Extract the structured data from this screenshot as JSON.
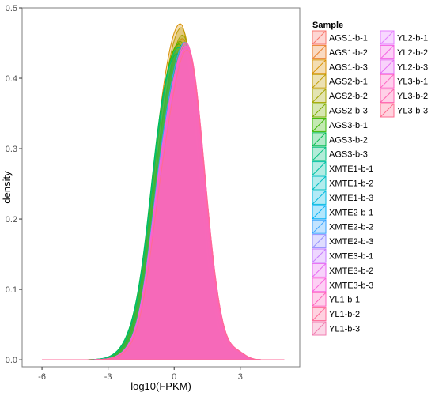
{
  "chart_data": {
    "type": "area",
    "title": "",
    "xlabel": "log10(FPKM)",
    "ylabel": "density",
    "xlim": [
      -6.9,
      5.7
    ],
    "ylim": [
      -0.01,
      0.5
    ],
    "x_ticks": [
      -6,
      -3,
      0,
      3
    ],
    "x_tick_labels": [
      "-6",
      "-3",
      "0",
      "3"
    ],
    "y_ticks": [
      0.0,
      0.1,
      0.2,
      0.3,
      0.4,
      0.5
    ],
    "y_tick_labels": [
      "0.0",
      "0.1",
      "0.2",
      "0.3",
      "0.4",
      "0.5"
    ],
    "x_range": [
      -6,
      5
    ],
    "grid": false,
    "legend_position": "right",
    "legend_title": "Sample",
    "fill_opacity": 0.3,
    "series": [
      {
        "name": "AGS1-b-1",
        "color": "#F8766D",
        "peak_x": 0.35,
        "peak_density": 0.44,
        "shoulder_density": 0.2
      },
      {
        "name": "AGS1-b-2",
        "color": "#EA8331",
        "peak_x": 0.4,
        "peak_density": 0.455,
        "shoulder_density": 0.2
      },
      {
        "name": "AGS1-b-3",
        "color": "#D89000",
        "peak_x": 0.3,
        "peak_density": 0.475,
        "shoulder_density": 0.19
      },
      {
        "name": "AGS2-b-1",
        "color": "#C09B00",
        "peak_x": 0.35,
        "peak_density": 0.47,
        "shoulder_density": 0.2
      },
      {
        "name": "AGS2-b-2",
        "color": "#A3A500",
        "peak_x": 0.4,
        "peak_density": 0.46,
        "shoulder_density": 0.2
      },
      {
        "name": "AGS2-b-3",
        "color": "#7CAE00",
        "peak_x": 0.3,
        "peak_density": 0.45,
        "shoulder_density": 0.21
      },
      {
        "name": "AGS3-b-1",
        "color": "#39B600",
        "peak_x": 0.25,
        "peak_density": 0.445,
        "shoulder_density": 0.21
      },
      {
        "name": "AGS3-b-2",
        "color": "#00BB4E",
        "peak_x": 0.2,
        "peak_density": 0.43,
        "shoulder_density": 0.22
      },
      {
        "name": "AGS3-b-3",
        "color": "#00BF7D",
        "peak_x": 0.25,
        "peak_density": 0.44,
        "shoulder_density": 0.21
      },
      {
        "name": "XMTE1-b-1",
        "color": "#00C1A3",
        "peak_x": 0.5,
        "peak_density": 0.435,
        "shoulder_density": 0.22
      },
      {
        "name": "XMTE1-b-2",
        "color": "#00BFC4",
        "peak_x": 0.55,
        "peak_density": 0.43,
        "shoulder_density": 0.22
      },
      {
        "name": "XMTE1-b-3",
        "color": "#00BAE0",
        "peak_x": 0.5,
        "peak_density": 0.44,
        "shoulder_density": 0.22
      },
      {
        "name": "XMTE2-b-1",
        "color": "#00B0F6",
        "peak_x": 0.55,
        "peak_density": 0.445,
        "shoulder_density": 0.23
      },
      {
        "name": "XMTE2-b-2",
        "color": "#35A2FF",
        "peak_x": 0.5,
        "peak_density": 0.45,
        "shoulder_density": 0.23
      },
      {
        "name": "XMTE2-b-3",
        "color": "#9590FF",
        "peak_x": 0.55,
        "peak_density": 0.44,
        "shoulder_density": 0.22
      },
      {
        "name": "XMTE3-b-1",
        "color": "#C77CFF",
        "peak_x": 0.5,
        "peak_density": 0.435,
        "shoulder_density": 0.22
      },
      {
        "name": "XMTE3-b-2",
        "color": "#E76BF3",
        "peak_x": 0.55,
        "peak_density": 0.445,
        "shoulder_density": 0.22
      },
      {
        "name": "XMTE3-b-3",
        "color": "#FA62DB",
        "peak_x": 0.5,
        "peak_density": 0.44,
        "shoulder_density": 0.22
      },
      {
        "name": "YL1-b-1",
        "color": "#FF62BC",
        "peak_x": 0.6,
        "peak_density": 0.445,
        "shoulder_density": 0.2
      },
      {
        "name": "YL1-b-2",
        "color": "#FF6A98",
        "peak_x": 0.6,
        "peak_density": 0.44,
        "shoulder_density": 0.2
      },
      {
        "name": "YL1-b-3",
        "color": "#F17CB0",
        "peak_x": 0.55,
        "peak_density": 0.45,
        "shoulder_density": 0.2
      },
      {
        "name": "YL2-b-1",
        "color": "#E57EFF",
        "peak_x": 0.6,
        "peak_density": 0.44,
        "shoulder_density": 0.2
      },
      {
        "name": "YL2-b-2",
        "color": "#F564E3",
        "peak_x": 0.55,
        "peak_density": 0.445,
        "shoulder_density": 0.2
      },
      {
        "name": "YL2-b-3",
        "color": "#E76BF3",
        "peak_x": 0.6,
        "peak_density": 0.44,
        "shoulder_density": 0.2
      },
      {
        "name": "YL3-b-1",
        "color": "#FF61C3",
        "peak_x": 0.55,
        "peak_density": 0.45,
        "shoulder_density": 0.2
      },
      {
        "name": "YL3-b-2",
        "color": "#FF64B0",
        "peak_x": 0.6,
        "peak_density": 0.445,
        "shoulder_density": 0.2
      },
      {
        "name": "YL3-b-3",
        "color": "#FF6C91",
        "peak_x": 0.6,
        "peak_density": 0.44,
        "shoulder_density": 0.2
      }
    ]
  }
}
